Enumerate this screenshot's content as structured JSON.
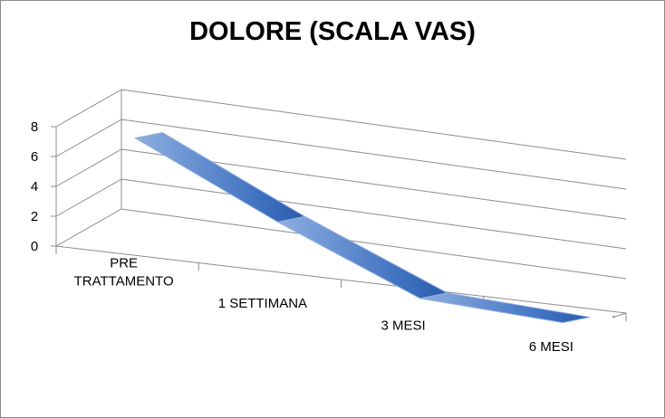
{
  "chart_data": {
    "type": "line",
    "subtype": "3d-ribbon",
    "title": "DOLORE (SCALA VAS)",
    "xlabel": "",
    "ylabel": "",
    "categories": [
      [
        "PRE",
        "TRATTAMENTO"
      ],
      [
        "1 SETTIMANA"
      ],
      [
        "3 MESI"
      ],
      [
        "6 MESI"
      ]
    ],
    "series": [
      {
        "values": [
          7.5,
          3.0,
          -1.0,
          -1.5
        ]
      }
    ],
    "yticks": [
      "0",
      "2",
      "4",
      "6",
      "8"
    ],
    "ylim": [
      0,
      8
    ],
    "grid": true,
    "legend": "none",
    "colors": {
      "ribbon_light": "#8eaee0",
      "ribbon_dark": "#2f64b4",
      "axis": "#8c8c8c",
      "grid": "#8c8c8c"
    }
  }
}
